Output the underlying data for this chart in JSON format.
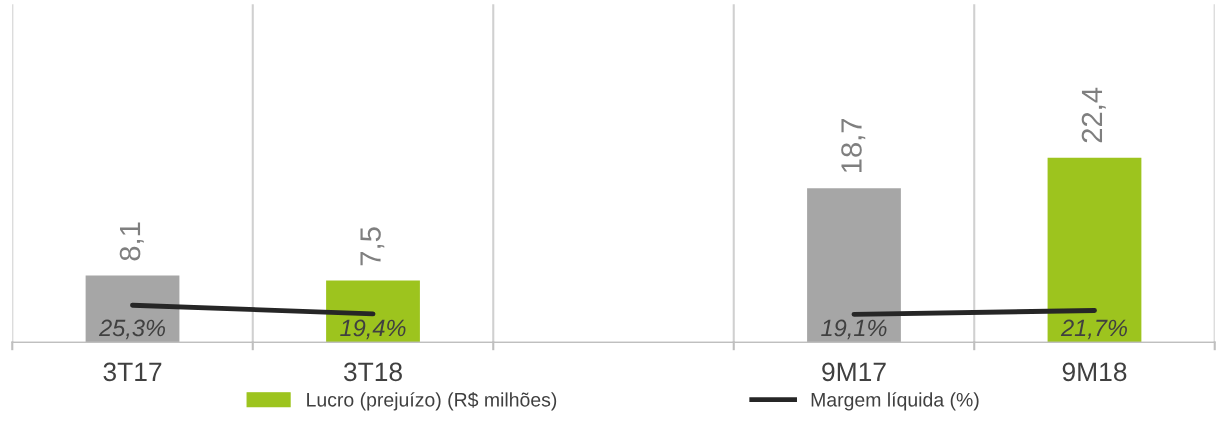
{
  "chart_data": {
    "type": "bar",
    "categories": [
      "3T17",
      "3T18",
      null,
      "9M17",
      "9M18"
    ],
    "series": [
      {
        "name": "Lucro (prejuízo) (R$ milhões)",
        "color": "#9dc41e",
        "colors": [
          "#a6a6a6",
          "#9dc41e",
          "#9dc41e",
          "#a6a6a6",
          "#9dc41e"
        ],
        "values": [
          8.1,
          7.5,
          null,
          18.7,
          22.4
        ],
        "value_labels": [
          "8,1",
          "7,5",
          null,
          "18,7",
          "22,4"
        ]
      },
      {
        "name": "Margem líquida (%)",
        "type": "line",
        "axis": "y2",
        "color": "#262626",
        "values": [
          25.3,
          19.4,
          null,
          19.1,
          21.7
        ],
        "value_labels": [
          "25,3%",
          "19,4%",
          null,
          "19,1%",
          "21,7%"
        ]
      }
    ],
    "ylim": [
      0,
      41
    ],
    "y2lim": [
      0,
      230
    ],
    "tick_labels": "x",
    "grid": "x",
    "legend": "bottom",
    "marker": "none",
    "line_style": "solid"
  }
}
